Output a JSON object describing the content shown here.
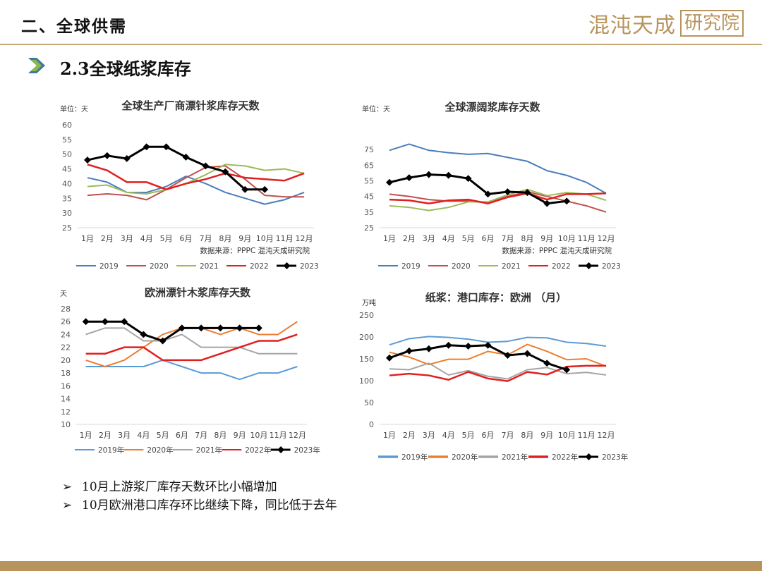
{
  "header": {
    "title": "二、全球供需"
  },
  "logo": {
    "main": "混沌天成",
    "boxed": "研究院"
  },
  "section": {
    "title": "2.3全球纸浆库存"
  },
  "colors": {
    "2019": "#4a7ebb",
    "2020": "#c0504d",
    "2021": "#9bbb59",
    "2022": "#e02020",
    "2023": "#000000",
    "orange2020": "#ed7d31",
    "grey2021": "#a5a5a5",
    "blue2019": "#5b9bd5",
    "gold": "#b8945c"
  },
  "chart_data": [
    {
      "type": "line",
      "title": "全球生产厂商漂针浆库存天数",
      "unit_label": "单位：天",
      "source": "数据来源：PPPC 混沌天成研究院",
      "categories": [
        "1月",
        "2月",
        "3月",
        "4月",
        "5月",
        "6月",
        "7月",
        "8月",
        "9月",
        "10月",
        "11月",
        "12月"
      ],
      "ylim": [
        25,
        60
      ],
      "yticks": [
        25,
        30,
        35,
        40,
        45,
        50,
        55,
        60
      ],
      "series": [
        {
          "name": "2019",
          "values": [
            42,
            40.5,
            37,
            37,
            39,
            42.5,
            40,
            37,
            35,
            33,
            34.5,
            37
          ]
        },
        {
          "name": "2020",
          "values": [
            36,
            36.5,
            36,
            34.5,
            38,
            42,
            45.5,
            46,
            41.5,
            36,
            35.5,
            35.5
          ]
        },
        {
          "name": "2021",
          "values": [
            39,
            39.5,
            37,
            36.5,
            38,
            40,
            43,
            46.5,
            46,
            44.5,
            45,
            43.5
          ]
        },
        {
          "name": "2022",
          "values": [
            46.5,
            44.5,
            40.5,
            40.5,
            38,
            40,
            41.5,
            43.5,
            42,
            41.5,
            41,
            43.5
          ]
        },
        {
          "name": "2023",
          "values": [
            48,
            49.5,
            48.5,
            52.5,
            52.5,
            49,
            46,
            44,
            38,
            38,
            null,
            null
          ]
        }
      ]
    },
    {
      "type": "line",
      "title": "全球漂阔浆库存天数",
      "unit_label": "单位：天",
      "source": "数据来源：PPPC 混沌天成研究院",
      "categories": [
        "1月",
        "2月",
        "3月",
        "4月",
        "5月",
        "6月",
        "7月",
        "8月",
        "9月",
        "10月",
        "11月",
        "12月"
      ],
      "ylim": [
        25,
        85
      ],
      "yticks": [
        25,
        35,
        45,
        55,
        65,
        75
      ],
      "series": [
        {
          "name": "2019",
          "values": [
            74.5,
            78.5,
            74.5,
            73,
            72,
            72.5,
            70,
            67.5,
            61.5,
            58.5,
            54,
            47
          ]
        },
        {
          "name": "2020",
          "values": [
            46.5,
            45,
            43,
            42,
            42,
            41,
            45,
            48,
            45,
            42,
            39,
            35
          ]
        },
        {
          "name": "2021",
          "values": [
            39,
            38,
            36,
            38,
            41.5,
            41.5,
            46,
            49.5,
            45.5,
            47.5,
            46.5,
            42.5
          ]
        },
        {
          "name": "2022",
          "values": [
            43,
            42.5,
            40.5,
            42.5,
            43,
            40.5,
            44.5,
            47,
            43,
            46.5,
            46.5,
            47
          ]
        },
        {
          "name": "2023",
          "values": [
            54,
            57,
            59,
            58.5,
            56.5,
            46.5,
            48,
            47.5,
            40.5,
            42,
            null,
            null
          ]
        }
      ]
    },
    {
      "type": "line",
      "title": "欧洲漂针木浆库存天数",
      "unit_label": "天",
      "categories": [
        "1月",
        "2月",
        "3月",
        "4月",
        "5月",
        "6月",
        "7月",
        "8月",
        "9月",
        "10月",
        "11月",
        "12月"
      ],
      "ylim": [
        10,
        28
      ],
      "yticks": [
        10,
        12,
        14,
        16,
        18,
        20,
        22,
        24,
        26,
        28
      ],
      "series": [
        {
          "name": "2019年",
          "values": [
            19,
            19,
            19,
            19,
            20,
            19,
            18,
            18,
            17,
            18,
            18,
            19
          ]
        },
        {
          "name": "2020年",
          "values": [
            20,
            19,
            20,
            22,
            24,
            25,
            25,
            24,
            25,
            24,
            24,
            26
          ]
        },
        {
          "name": "2021年",
          "values": [
            24,
            25,
            25,
            23,
            23,
            24,
            22,
            22,
            22,
            21,
            21,
            21
          ]
        },
        {
          "name": "2022年",
          "values": [
            21,
            21,
            22,
            22,
            20,
            20,
            20,
            21,
            22,
            23,
            23,
            24
          ]
        },
        {
          "name": "2023年",
          "values": [
            26,
            26,
            26,
            24,
            23,
            25,
            25,
            25,
            25,
            25,
            null,
            null
          ]
        }
      ]
    },
    {
      "type": "line",
      "title": "纸浆：港口库存：欧洲 （月）",
      "unit_label": "万吨",
      "categories": [
        "1月",
        "2月",
        "3月",
        "4月",
        "5月",
        "6月",
        "7月",
        "8月",
        "9月",
        "10月",
        "11月",
        "12月"
      ],
      "ylim": [
        0,
        250
      ],
      "yticks": [
        0,
        50,
        100,
        150,
        200,
        250
      ],
      "series": [
        {
          "name": "2019年",
          "values": [
            182,
            196,
            201,
            199,
            195,
            188,
            190,
            199,
            198,
            188,
            185,
            179
          ]
        },
        {
          "name": "2020年",
          "values": [
            165,
            154,
            137,
            149,
            149,
            167,
            159,
            183,
            167,
            148,
            150,
            133
          ]
        },
        {
          "name": "2021年",
          "values": [
            127,
            125,
            140,
            113,
            123,
            110,
            104,
            125,
            130,
            116,
            119,
            113
          ]
        },
        {
          "name": "2022年",
          "values": [
            112,
            116,
            112,
            102,
            120,
            105,
            99,
            120,
            114,
            132,
            134,
            134
          ]
        },
        {
          "name": "2023年",
          "values": [
            152,
            168,
            173,
            181,
            179,
            181,
            158,
            162,
            140,
            125,
            null,
            null
          ]
        }
      ]
    }
  ],
  "bullets": [
    "10月上游浆厂库存天数环比小幅增加",
    "10月欧洲港口库存环比继续下降，同比低于去年"
  ]
}
